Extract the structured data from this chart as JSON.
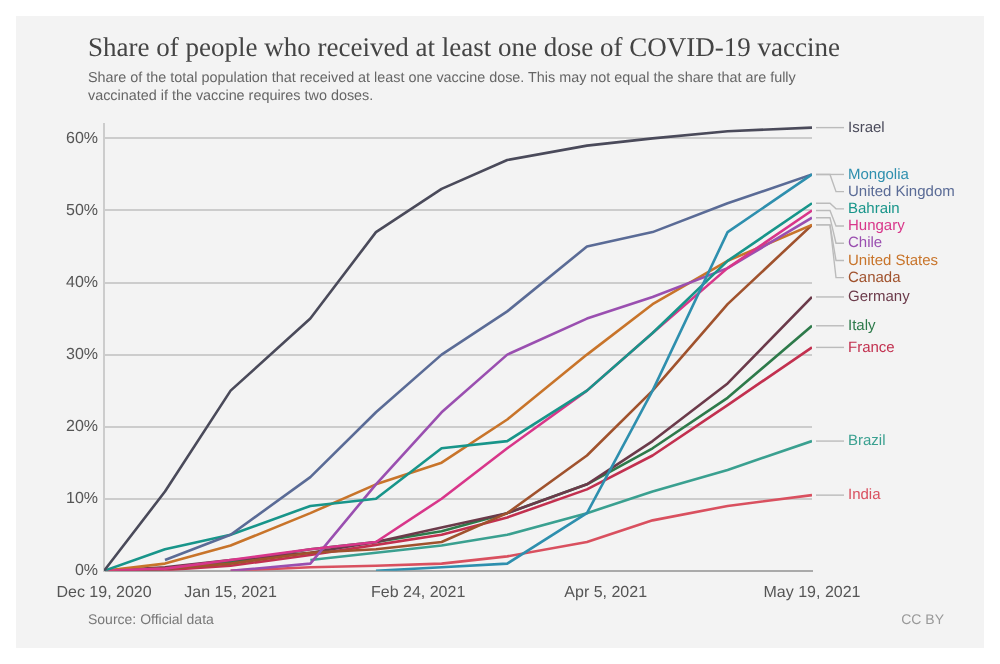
{
  "chart_data": {
    "type": "line",
    "title": "Share of people who received at least one dose of COVID-19 vaccine",
    "subtitle": "Share of the total population that received at least one vaccine dose. This may not equal the share that are fully vaccinated if the vaccine requires two doses.",
    "x": [
      "2020-12-19",
      "2021-01-01",
      "2021-01-15",
      "2021-02-01",
      "2021-02-15",
      "2021-03-01",
      "2021-03-15",
      "2021-04-01",
      "2021-04-15",
      "2021-05-01",
      "2021-05-19"
    ],
    "series": [
      {
        "name": "Israel",
        "color": "#4a4a5a",
        "values": [
          0,
          11,
          25,
          35,
          47,
          53,
          57,
          59,
          60,
          61,
          61.5
        ]
      },
      {
        "name": "Mongolia",
        "color": "#2e8fae",
        "values": [
          null,
          null,
          null,
          null,
          0,
          0.5,
          1,
          8,
          25,
          47,
          55
        ]
      },
      {
        "name": "United Kingdom",
        "color": "#5a6b96",
        "values": [
          null,
          1.5,
          5,
          13,
          22,
          30,
          36,
          45,
          47,
          51,
          55
        ]
      },
      {
        "name": "Bahrain",
        "color": "#18958a",
        "values": [
          0,
          3,
          5,
          9,
          10,
          17,
          18,
          25,
          33,
          43,
          51
        ]
      },
      {
        "name": "Hungary",
        "color": "#d8368a",
        "values": [
          0,
          0.3,
          1.5,
          3,
          4,
          10,
          17,
          25,
          33,
          42,
          50
        ]
      },
      {
        "name": "Chile",
        "color": "#9a4fb0",
        "values": [
          null,
          null,
          0,
          1,
          12,
          22,
          30,
          35,
          38,
          42,
          49
        ]
      },
      {
        "name": "United States",
        "color": "#c8742a",
        "values": [
          0,
          1,
          3.5,
          8,
          12,
          15,
          21,
          30,
          37,
          43,
          48
        ]
      },
      {
        "name": "Canada",
        "color": "#a0522d",
        "values": [
          0,
          0.3,
          1,
          2.5,
          3,
          4,
          8,
          16,
          25,
          37,
          48
        ]
      },
      {
        "name": "Germany",
        "color": "#6b3a4a",
        "values": [
          0,
          0.5,
          1.5,
          2.5,
          4,
          6,
          8,
          12,
          18,
          26,
          38
        ]
      },
      {
        "name": "Italy",
        "color": "#2d7a4a",
        "values": [
          0,
          0.3,
          1.2,
          3,
          4,
          5.5,
          8,
          12,
          17,
          24,
          34
        ]
      },
      {
        "name": "France",
        "color": "#c2304f",
        "values": [
          0,
          0.1,
          0.7,
          2.2,
          3.6,
          5,
          7.4,
          11.3,
          16,
          23,
          31
        ]
      },
      {
        "name": "Brazil",
        "color": "#3aa090",
        "values": [
          null,
          null,
          null,
          1.5,
          2.5,
          3.5,
          5,
          8,
          11,
          14,
          18
        ]
      },
      {
        "name": "India",
        "color": "#d9505f",
        "values": [
          null,
          null,
          0,
          0.5,
          0.7,
          1,
          2,
          4,
          7,
          9,
          10.5
        ]
      }
    ],
    "xlim": [
      "2020-12-19",
      "2021-05-19"
    ],
    "xticks": [
      {
        "value": "2020-12-19",
        "label": "Dec 19, 2020"
      },
      {
        "value": "2021-01-15",
        "label": "Jan 15, 2021"
      },
      {
        "value": "2021-02-24",
        "label": "Feb 24, 2021"
      },
      {
        "value": "2021-04-05",
        "label": "Apr 5, 2021"
      },
      {
        "value": "2021-05-19",
        "label": "May 19, 2021"
      }
    ],
    "ylim": [
      0,
      62
    ],
    "yticks": [
      {
        "value": 0,
        "label": "0%"
      },
      {
        "value": 10,
        "label": "10%"
      },
      {
        "value": 20,
        "label": "20%"
      },
      {
        "value": 30,
        "label": "30%"
      },
      {
        "value": 40,
        "label": "40%"
      },
      {
        "value": 50,
        "label": "50%"
      },
      {
        "value": 60,
        "label": "60%"
      }
    ],
    "grid": "y",
    "marker": "none",
    "line_style": "solid",
    "annotations": [
      "Source: Official data",
      "CC BY"
    ]
  }
}
